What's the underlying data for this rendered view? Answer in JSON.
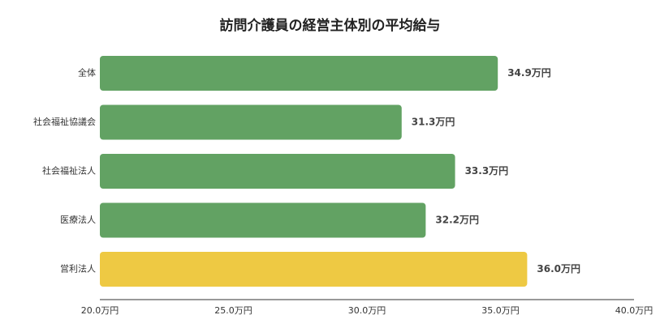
{
  "chart_data": {
    "type": "bar",
    "orientation": "horizontal",
    "title": "訪問介護員の経営主体別の平均給与",
    "categories": [
      "全体",
      "社会福祉協議会",
      "社会福祉法人",
      "医療法人",
      "営利法人"
    ],
    "values": [
      34.9,
      31.3,
      33.3,
      32.2,
      36.0
    ],
    "value_labels": [
      "34.9万円",
      "31.3万円",
      "33.3万円",
      "32.2万円",
      "36.0万円"
    ],
    "bar_colors": [
      "#62a263",
      "#62a263",
      "#62a263",
      "#62a263",
      "#eec943"
    ],
    "xlim": [
      20.0,
      40.0
    ],
    "x_ticks": [
      20.0,
      25.0,
      30.0,
      35.0,
      40.0
    ],
    "x_tick_labels": [
      "20.0万円",
      "25.0万円",
      "30.0万円",
      "35.0万円",
      "40.0万円"
    ],
    "xlabel": "",
    "ylabel": "",
    "grid": false,
    "legend": "none"
  }
}
